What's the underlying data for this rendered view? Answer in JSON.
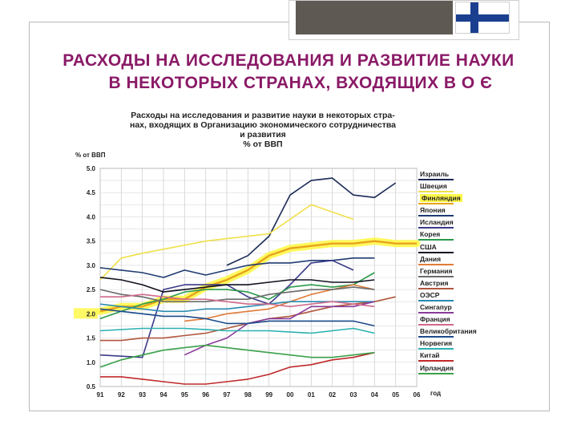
{
  "slide": {
    "title_line1": "РАСХОДЫ НА ИССЛЕДОВАНИЯ И РАЗВИТИЕ НАУКИ",
    "title_line2": "В НЕКОТОРЫХ СТРАНАХ, ВХОДЯЩИХ В О Є",
    "title_color": "#8a1a67"
  },
  "chart_data": {
    "type": "line",
    "title": [
      "Расходы на исследования и развитие науки в некоторых стра-",
      "нах, входящих в Организацию экономического сотрудничества",
      "и развития",
      "% от ВВП"
    ],
    "ylabel": "% от ВВП",
    "xlabel": "год",
    "x": [
      "91",
      "92",
      "93",
      "94",
      "95",
      "96",
      "97",
      "98",
      "99",
      "00",
      "01",
      "02",
      "03",
      "04",
      "05",
      "06"
    ],
    "yticks": [
      "5.0",
      "4.5",
      "4.0",
      "3.5",
      "3.0",
      "2.5",
      "2.0",
      "1.5",
      "1.0",
      "0.5"
    ],
    "ylim": [
      0.5,
      5.0
    ],
    "grid": true,
    "legend_position": "right",
    "series": [
      {
        "name": "Израиль",
        "color": "#1a2a55",
        "values": [
          null,
          null,
          null,
          null,
          null,
          null,
          3.0,
          3.2,
          3.6,
          4.45,
          4.75,
          4.8,
          4.45,
          4.4,
          4.7,
          null
        ]
      },
      {
        "name": "Швеция",
        "color": "#f0e04a",
        "values": [
          2.7,
          3.15,
          3.25,
          null,
          null,
          3.5,
          3.55,
          null,
          3.65,
          null,
          4.25,
          null,
          3.95,
          null,
          null,
          null
        ]
      },
      {
        "name": "Финляндия",
        "color": "#e8a31c",
        "highlight": true,
        "values": [
          2.05,
          2.15,
          2.15,
          2.3,
          2.3,
          2.55,
          2.7,
          2.9,
          3.2,
          3.35,
          3.4,
          3.45,
          3.45,
          3.5,
          3.45,
          3.45
        ]
      },
      {
        "name": "Япония",
        "color": "#1f3b73",
        "values": [
          2.95,
          2.9,
          2.85,
          2.75,
          2.9,
          2.8,
          2.9,
          3.0,
          3.05,
          3.05,
          3.1,
          3.1,
          3.15,
          3.15,
          null,
          null
        ]
      },
      {
        "name": "Исландия",
        "color": "#3a3a8a",
        "values": [
          1.15,
          null,
          1.1,
          2.5,
          2.6,
          null,
          2.6,
          2.35,
          2.2,
          2.6,
          3.05,
          3.1,
          2.9,
          null,
          null,
          null
        ]
      },
      {
        "name": "Корея",
        "color": "#2a9a4a",
        "values": [
          1.9,
          2.05,
          2.2,
          2.3,
          2.45,
          2.5,
          2.5,
          2.45,
          2.3,
          2.55,
          2.6,
          2.55,
          2.6,
          2.85,
          null,
          null
        ]
      },
      {
        "name": "США",
        "color": "#101020",
        "values": [
          2.75,
          2.7,
          2.6,
          2.45,
          2.5,
          2.55,
          2.6,
          2.6,
          2.65,
          2.7,
          2.7,
          2.65,
          2.65,
          2.7,
          null,
          null
        ]
      },
      {
        "name": "Дания",
        "color": "#e07b39",
        "values": [
          null,
          null,
          null,
          null,
          1.85,
          1.9,
          2.0,
          2.05,
          2.1,
          2.25,
          2.4,
          2.5,
          2.6,
          2.5,
          null,
          null
        ]
      },
      {
        "name": "Германия",
        "color": "#6b6b6b",
        "values": [
          2.5,
          2.4,
          2.35,
          2.25,
          2.25,
          2.25,
          2.3,
          2.3,
          2.4,
          2.45,
          2.5,
          2.5,
          2.55,
          2.5,
          null,
          null
        ]
      },
      {
        "name": "Австрия",
        "color": "#b0563d",
        "values": [
          1.45,
          1.45,
          1.5,
          1.5,
          1.55,
          1.6,
          1.7,
          1.8,
          1.9,
          1.95,
          2.05,
          2.15,
          2.2,
          2.25,
          2.35,
          null
        ]
      },
      {
        "name": "ОЭСР",
        "color": "#2a8ab0",
        "values": [
          2.2,
          2.15,
          2.1,
          2.05,
          2.05,
          2.1,
          2.1,
          2.15,
          2.2,
          2.25,
          2.25,
          2.25,
          2.25,
          2.25,
          null,
          null
        ]
      },
      {
        "name": "Сингапур",
        "color": "#8a3a9a",
        "values": [
          null,
          null,
          null,
          null,
          1.15,
          1.35,
          1.5,
          1.8,
          1.9,
          1.9,
          2.15,
          2.15,
          2.15,
          2.25,
          null,
          null
        ]
      },
      {
        "name": "Франция",
        "color": "#d06a8a",
        "values": [
          2.35,
          2.35,
          2.4,
          2.35,
          2.3,
          2.3,
          2.25,
          2.2,
          2.2,
          2.15,
          2.2,
          2.25,
          2.2,
          2.15,
          null,
          null
        ]
      },
      {
        "name": "Великобритания",
        "color": "#1a4a8a",
        "values": [
          2.1,
          2.05,
          2.0,
          1.95,
          1.95,
          1.9,
          1.8,
          1.8,
          1.85,
          1.85,
          1.85,
          1.85,
          1.85,
          1.75,
          null,
          null
        ]
      },
      {
        "name": "Норвегия",
        "color": "#2ab0b0",
        "values": [
          1.65,
          null,
          1.7,
          null,
          1.7,
          null,
          1.65,
          null,
          1.65,
          null,
          1.6,
          null,
          1.7,
          1.6,
          null,
          null
        ]
      },
      {
        "name": "Китай",
        "color": "#c0282a",
        "values": [
          0.7,
          0.7,
          0.65,
          0.6,
          0.55,
          0.55,
          0.6,
          0.65,
          0.75,
          0.9,
          0.95,
          1.05,
          1.1,
          1.2,
          null,
          null
        ]
      },
      {
        "name": "Ирландия",
        "color": "#3aa04a",
        "values": [
          0.9,
          1.05,
          1.15,
          1.25,
          1.3,
          1.35,
          1.3,
          1.25,
          1.2,
          1.15,
          1.1,
          1.1,
          1.15,
          1.2,
          null,
          null
        ]
      }
    ]
  }
}
